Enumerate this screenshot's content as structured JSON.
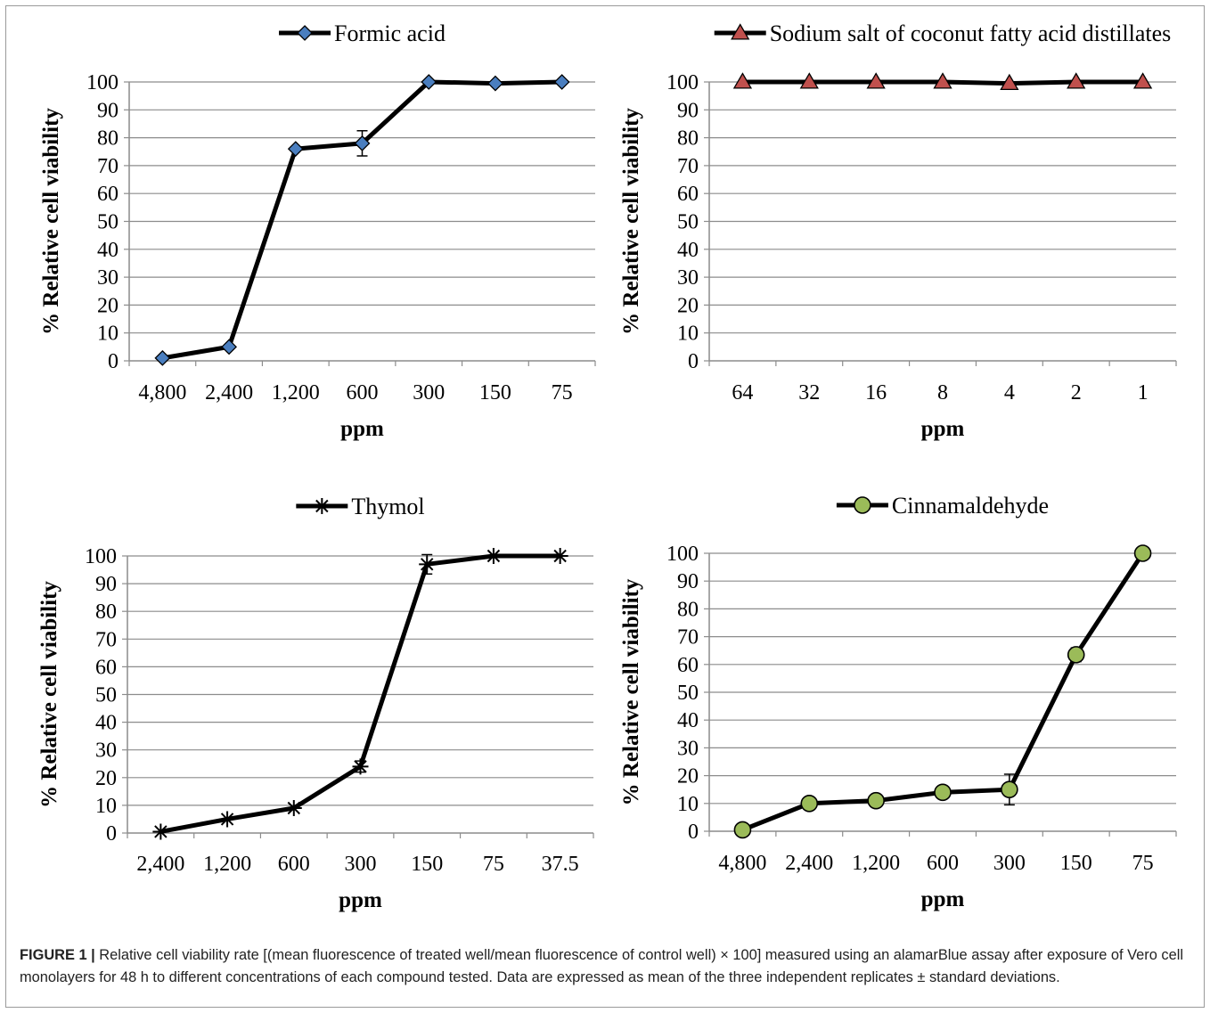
{
  "chart_data": [
    {
      "type": "line",
      "legend": "Formic acid",
      "marker": "diamond",
      "marker_color": "#4a7ebf",
      "categories": [
        "4,800",
        "2,400",
        "1,200",
        "600",
        "300",
        "150",
        "75"
      ],
      "values": [
        1,
        5,
        76,
        78,
        100,
        99.5,
        100
      ],
      "errors": [
        0,
        0,
        0,
        4.5,
        0,
        0,
        0
      ],
      "xlabel": "ppm",
      "ylabel": "% Relative cell viability",
      "ylim": [
        0,
        100
      ],
      "yticks": [
        "0",
        "10",
        "20",
        "30",
        "40",
        "50",
        "60",
        "70",
        "80",
        "90",
        "100"
      ],
      "grid": true,
      "legend_position": "top"
    },
    {
      "type": "line",
      "legend": "Sodium salt of coconut fatty acid distillates",
      "marker": "triangle",
      "marker_color": "#c0504d",
      "categories": [
        "64",
        "32",
        "16",
        "8",
        "4",
        "2",
        "1"
      ],
      "values": [
        100,
        100,
        100,
        100,
        99.5,
        100,
        100
      ],
      "errors": [
        0,
        0,
        0,
        0,
        0,
        0,
        0
      ],
      "xlabel": "ppm",
      "ylabel": "% Relative cell viability",
      "ylim": [
        0,
        100
      ],
      "yticks": [
        "0",
        "10",
        "20",
        "30",
        "40",
        "50",
        "60",
        "70",
        "80",
        "90",
        "100"
      ],
      "grid": true,
      "legend_position": "top"
    },
    {
      "type": "line",
      "legend": "Thymol",
      "marker": "star",
      "marker_color": "#000000",
      "categories": [
        "2,400",
        "1,200",
        "600",
        "300",
        "150",
        "75",
        "37.5"
      ],
      "values": [
        0.5,
        5,
        9,
        24,
        97,
        100,
        100
      ],
      "errors": [
        0,
        0,
        0,
        2,
        3.5,
        0,
        0
      ],
      "xlabel": "ppm",
      "ylabel": "% Relative cell viability",
      "ylim": [
        0,
        100
      ],
      "yticks": [
        "0",
        "10",
        "20",
        "30",
        "40",
        "50",
        "60",
        "70",
        "80",
        "90",
        "100"
      ],
      "grid": true,
      "legend_position": "top"
    },
    {
      "type": "line",
      "legend": "Cinnamaldehyde",
      "marker": "circle",
      "marker_color": "#9bbb59",
      "categories": [
        "4,800",
        "2,400",
        "1,200",
        "600",
        "300",
        "150",
        "75"
      ],
      "values": [
        0.5,
        10,
        11,
        14,
        15,
        63.5,
        100
      ],
      "errors": [
        0,
        0,
        0,
        0,
        5.5,
        2.5,
        0
      ],
      "xlabel": "ppm",
      "ylabel": "% Relative cell viability",
      "ylim": [
        0,
        100
      ],
      "yticks": [
        "0",
        "10",
        "20",
        "30",
        "40",
        "50",
        "60",
        "70",
        "80",
        "90",
        "100"
      ],
      "grid": true,
      "legend_position": "top"
    }
  ],
  "caption": {
    "label": "FIGURE 1 |",
    "text": "Relative cell viability rate [(mean fluorescence of treated well/mean fluorescence of control well) × 100] measured using an alamarBlue assay after exposure of Vero cell monolayers for 48 h to different concentrations of each compound tested. Data are expressed as mean of the three independent replicates ± standard deviations."
  }
}
